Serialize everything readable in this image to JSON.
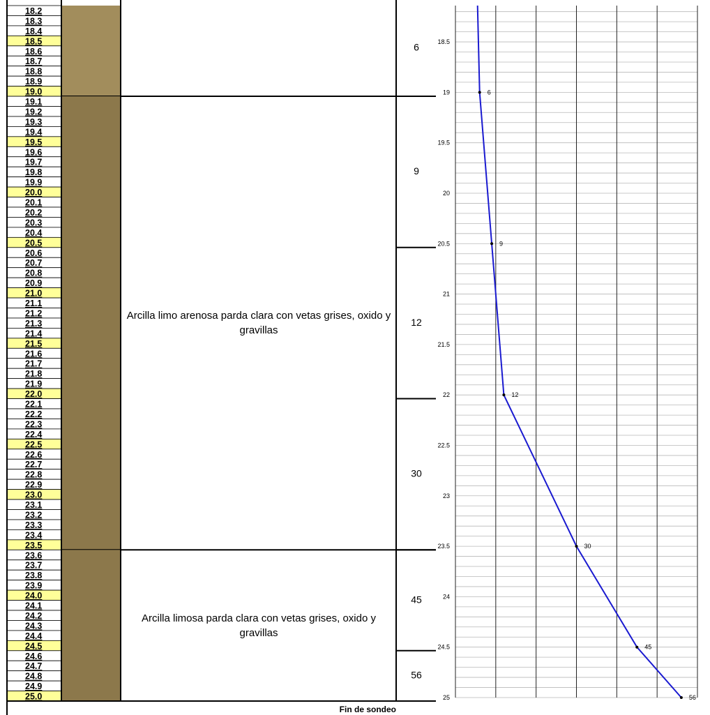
{
  "depths": [
    "18.2",
    "18.3",
    "18.4",
    "18.5",
    "18.6",
    "18.7",
    "18.8",
    "18.9",
    "19.0",
    "19.1",
    "19.2",
    "19.3",
    "19.4",
    "19.5",
    "19.6",
    "19.7",
    "19.8",
    "19.9",
    "20.0",
    "20.1",
    "20.2",
    "20.3",
    "20.4",
    "20.5",
    "20.6",
    "20.7",
    "20.8",
    "20.9",
    "21.0",
    "21.1",
    "21.2",
    "21.3",
    "21.4",
    "21.5",
    "21.6",
    "21.7",
    "21.8",
    "21.9",
    "22.0",
    "22.1",
    "22.2",
    "22.3",
    "22.4",
    "22.5",
    "22.6",
    "22.7",
    "22.8",
    "22.9",
    "23.0",
    "23.1",
    "23.2",
    "23.3",
    "23.4",
    "23.5",
    "23.6",
    "23.7",
    "23.8",
    "23.9",
    "24.0",
    "24.1",
    "24.2",
    "24.3",
    "24.4",
    "24.5",
    "24.6",
    "24.7",
    "24.8",
    "24.9",
    "25.0"
  ],
  "layers": [
    {
      "bottom": 19.0,
      "color": "#a28d5c"
    },
    {
      "bottom": 23.5,
      "color": "#8c784b",
      "description": "Arcilla limo arenosa parda clara con vetas grises, oxido y gravillas"
    },
    {
      "bottom": 25.0,
      "color": "#8c784b",
      "description": "Arcilla limosa parda clara con vetas grises, oxido y gravillas"
    }
  ],
  "footer": "Fin de sondeo",
  "chart_data": {
    "type": "line",
    "x": [
      19,
      20.5,
      22,
      23.5,
      24.5,
      25
    ],
    "values": [
      6,
      9,
      12,
      30,
      45,
      56
    ],
    "color": "#1a1ad0",
    "xlim": [
      18.14,
      25
    ],
    "xticks": [
      18.5,
      19,
      19.5,
      20,
      20.5,
      21,
      21.5,
      22,
      22.5,
      23,
      23.5,
      24,
      24.5,
      25
    ],
    "ylim": [
      0,
      60
    ],
    "ygrid": [
      0,
      10,
      20,
      30,
      40,
      50,
      60
    ]
  }
}
